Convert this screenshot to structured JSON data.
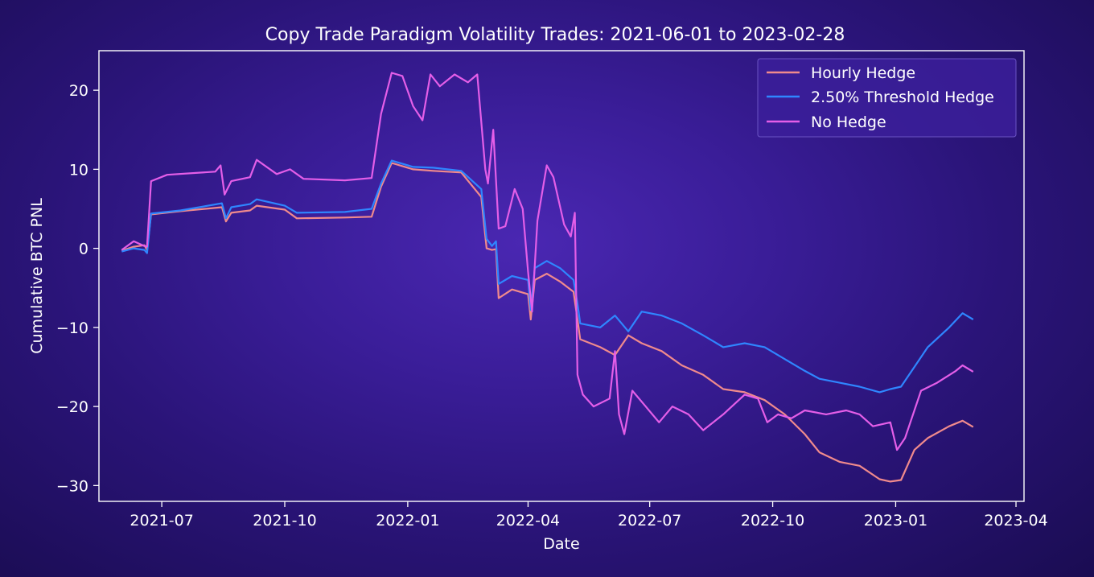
{
  "chart_data": {
    "type": "line",
    "title": "Copy Trade Paradigm Volatility Trades: 2021-06-01 to 2023-02-28",
    "xlabel": "Date",
    "ylabel": "Cumulative BTC PNL",
    "xlim": [
      "2021-05-15",
      "2023-04-07"
    ],
    "ylim": [
      -32,
      25
    ],
    "x_ticks": [
      "2021-07-01",
      "2021-10-01",
      "2022-01-01",
      "2022-04-01",
      "2022-07-01",
      "2022-10-01",
      "2023-01-01",
      "2023-04-01"
    ],
    "x_tick_labels": [
      "2021-07",
      "2021-10",
      "2022-01",
      "2022-04",
      "2022-07",
      "2022-10",
      "2023-01",
      "2023-04"
    ],
    "y_ticks": [
      20,
      10,
      0,
      -10,
      -20,
      -30
    ],
    "y_tick_labels": [
      "20",
      "10",
      "0",
      "−10",
      "−20",
      "−30"
    ],
    "grid": false,
    "legend_position": "top-right",
    "series": [
      {
        "name": "Hourly Hedge",
        "color": "#f08a8c",
        "points": [
          [
            "2021-06-01",
            -0.3
          ],
          [
            "2021-06-10",
            0.2
          ],
          [
            "2021-06-18",
            0.4
          ],
          [
            "2021-06-20",
            -0.2
          ],
          [
            "2021-06-23",
            4.3
          ],
          [
            "2021-07-15",
            4.7
          ],
          [
            "2021-08-15",
            5.2
          ],
          [
            "2021-08-18",
            3.4
          ],
          [
            "2021-08-22",
            4.5
          ],
          [
            "2021-09-05",
            4.8
          ],
          [
            "2021-09-10",
            5.4
          ],
          [
            "2021-10-01",
            4.9
          ],
          [
            "2021-10-10",
            3.8
          ],
          [
            "2021-11-15",
            3.9
          ],
          [
            "2021-12-05",
            4.0
          ],
          [
            "2021-12-12",
            7.8
          ],
          [
            "2021-12-20",
            10.8
          ],
          [
            "2022-01-05",
            10.0
          ],
          [
            "2022-01-20",
            9.8
          ],
          [
            "2022-02-10",
            9.6
          ],
          [
            "2022-02-25",
            6.5
          ],
          [
            "2022-03-01",
            0.0
          ],
          [
            "2022-03-05",
            -0.2
          ],
          [
            "2022-03-08",
            -0.1
          ],
          [
            "2022-03-10",
            -6.3
          ],
          [
            "2022-03-20",
            -5.2
          ],
          [
            "2022-04-01",
            -5.8
          ],
          [
            "2022-04-03",
            -9.0
          ],
          [
            "2022-04-06",
            -4.0
          ],
          [
            "2022-04-15",
            -3.2
          ],
          [
            "2022-04-25",
            -4.2
          ],
          [
            "2022-05-05",
            -5.5
          ],
          [
            "2022-05-08",
            -9.0
          ],
          [
            "2022-05-10",
            -11.5
          ],
          [
            "2022-05-25",
            -12.5
          ],
          [
            "2022-06-05",
            -13.5
          ],
          [
            "2022-06-15",
            -11.0
          ],
          [
            "2022-06-25",
            -12.0
          ],
          [
            "2022-07-10",
            -13.0
          ],
          [
            "2022-07-25",
            -14.8
          ],
          [
            "2022-08-10",
            -16.0
          ],
          [
            "2022-08-25",
            -17.8
          ],
          [
            "2022-09-10",
            -18.2
          ],
          [
            "2022-09-25",
            -19.2
          ],
          [
            "2022-10-10",
            -21.0
          ],
          [
            "2022-10-25",
            -23.5
          ],
          [
            "2022-11-05",
            -25.8
          ],
          [
            "2022-11-20",
            -27.0
          ],
          [
            "2022-12-05",
            -27.5
          ],
          [
            "2022-12-20",
            -29.2
          ],
          [
            "2022-12-28",
            -29.5
          ],
          [
            "2023-01-05",
            -29.3
          ],
          [
            "2023-01-15",
            -25.5
          ],
          [
            "2023-01-25",
            -24.0
          ],
          [
            "2023-02-10",
            -22.5
          ],
          [
            "2023-02-20",
            -21.8
          ],
          [
            "2023-02-28",
            -22.6
          ]
        ]
      },
      {
        "name": "2.50% Threshold Hedge",
        "color": "#2f86ff",
        "points": [
          [
            "2021-06-01",
            -0.4
          ],
          [
            "2021-06-10",
            0.0
          ],
          [
            "2021-06-18",
            -0.2
          ],
          [
            "2021-06-20",
            -0.6
          ],
          [
            "2021-06-23",
            4.4
          ],
          [
            "2021-07-15",
            4.8
          ],
          [
            "2021-08-15",
            5.7
          ],
          [
            "2021-08-18",
            3.8
          ],
          [
            "2021-08-22",
            5.2
          ],
          [
            "2021-09-05",
            5.6
          ],
          [
            "2021-09-10",
            6.2
          ],
          [
            "2021-10-01",
            5.4
          ],
          [
            "2021-10-10",
            4.5
          ],
          [
            "2021-11-15",
            4.6
          ],
          [
            "2021-12-05",
            5.0
          ],
          [
            "2021-12-12",
            8.2
          ],
          [
            "2021-12-20",
            11.1
          ],
          [
            "2022-01-05",
            10.3
          ],
          [
            "2022-01-20",
            10.2
          ],
          [
            "2022-02-10",
            9.8
          ],
          [
            "2022-02-25",
            7.5
          ],
          [
            "2022-03-01",
            1.2
          ],
          [
            "2022-03-05",
            0.3
          ],
          [
            "2022-03-08",
            0.9
          ],
          [
            "2022-03-10",
            -4.5
          ],
          [
            "2022-03-20",
            -3.5
          ],
          [
            "2022-04-01",
            -4.0
          ],
          [
            "2022-04-03",
            -7.8
          ],
          [
            "2022-04-06",
            -2.5
          ],
          [
            "2022-04-15",
            -1.6
          ],
          [
            "2022-04-25",
            -2.5
          ],
          [
            "2022-05-05",
            -4.0
          ],
          [
            "2022-05-08",
            -7.0
          ],
          [
            "2022-05-10",
            -9.5
          ],
          [
            "2022-05-25",
            -10.0
          ],
          [
            "2022-06-05",
            -8.5
          ],
          [
            "2022-06-15",
            -10.5
          ],
          [
            "2022-06-25",
            -8.0
          ],
          [
            "2022-07-10",
            -8.5
          ],
          [
            "2022-07-25",
            -9.5
          ],
          [
            "2022-08-10",
            -11.0
          ],
          [
            "2022-08-25",
            -12.5
          ],
          [
            "2022-09-10",
            -12.0
          ],
          [
            "2022-09-25",
            -12.5
          ],
          [
            "2022-10-10",
            -14.0
          ],
          [
            "2022-10-25",
            -15.5
          ],
          [
            "2022-11-05",
            -16.5
          ],
          [
            "2022-11-20",
            -17.0
          ],
          [
            "2022-12-05",
            -17.5
          ],
          [
            "2022-12-20",
            -18.2
          ],
          [
            "2022-12-28",
            -17.8
          ],
          [
            "2023-01-05",
            -17.5
          ],
          [
            "2023-01-15",
            -15.0
          ],
          [
            "2023-01-25",
            -12.5
          ],
          [
            "2023-02-10",
            -10.0
          ],
          [
            "2023-02-20",
            -8.2
          ],
          [
            "2023-02-28",
            -9.0
          ]
        ]
      },
      {
        "name": "No Hedge",
        "color": "#e45ee8",
        "points": [
          [
            "2021-06-01",
            -0.2
          ],
          [
            "2021-06-10",
            0.9
          ],
          [
            "2021-06-18",
            0.3
          ],
          [
            "2021-06-20",
            0.2
          ],
          [
            "2021-06-23",
            8.5
          ],
          [
            "2021-07-05",
            9.3
          ],
          [
            "2021-08-10",
            9.7
          ],
          [
            "2021-08-14",
            10.5
          ],
          [
            "2021-08-17",
            6.8
          ],
          [
            "2021-08-22",
            8.5
          ],
          [
            "2021-09-05",
            9.0
          ],
          [
            "2021-09-10",
            11.2
          ],
          [
            "2021-09-25",
            9.4
          ],
          [
            "2021-10-05",
            10.0
          ],
          [
            "2021-10-15",
            8.8
          ],
          [
            "2021-11-15",
            8.6
          ],
          [
            "2021-12-05",
            8.9
          ],
          [
            "2021-12-12",
            17.0
          ],
          [
            "2021-12-20",
            22.2
          ],
          [
            "2021-12-28",
            21.8
          ],
          [
            "2022-01-05",
            18.0
          ],
          [
            "2022-01-12",
            16.2
          ],
          [
            "2022-01-18",
            22.0
          ],
          [
            "2022-01-25",
            20.5
          ],
          [
            "2022-02-05",
            22.0
          ],
          [
            "2022-02-15",
            21.0
          ],
          [
            "2022-02-22",
            22.0
          ],
          [
            "2022-02-28",
            10.0
          ],
          [
            "2022-03-02",
            8.2
          ],
          [
            "2022-03-06",
            15.0
          ],
          [
            "2022-03-10",
            2.5
          ],
          [
            "2022-03-15",
            2.8
          ],
          [
            "2022-03-22",
            7.5
          ],
          [
            "2022-03-28",
            5.0
          ],
          [
            "2022-04-01",
            -3.0
          ],
          [
            "2022-04-04",
            -8.0
          ],
          [
            "2022-04-08",
            3.5
          ],
          [
            "2022-04-15",
            10.5
          ],
          [
            "2022-04-20",
            9.0
          ],
          [
            "2022-04-28",
            3.0
          ],
          [
            "2022-05-03",
            1.5
          ],
          [
            "2022-05-06",
            4.5
          ],
          [
            "2022-05-08",
            -16.0
          ],
          [
            "2022-05-12",
            -18.5
          ],
          [
            "2022-05-20",
            -20.0
          ],
          [
            "2022-06-01",
            -19.0
          ],
          [
            "2022-06-05",
            -13.0
          ],
          [
            "2022-06-08",
            -21.0
          ],
          [
            "2022-06-12",
            -23.5
          ],
          [
            "2022-06-18",
            -18.0
          ],
          [
            "2022-06-28",
            -20.0
          ],
          [
            "2022-07-08",
            -22.0
          ],
          [
            "2022-07-18",
            -20.0
          ],
          [
            "2022-07-30",
            -21.0
          ],
          [
            "2022-08-10",
            -23.0
          ],
          [
            "2022-08-25",
            -21.0
          ],
          [
            "2022-09-10",
            -18.5
          ],
          [
            "2022-09-20",
            -19.0
          ],
          [
            "2022-09-27",
            -22.0
          ],
          [
            "2022-10-05",
            -21.0
          ],
          [
            "2022-10-15",
            -21.5
          ],
          [
            "2022-10-25",
            -20.5
          ],
          [
            "2022-11-10",
            -21.0
          ],
          [
            "2022-11-25",
            -20.5
          ],
          [
            "2022-12-05",
            -21.0
          ],
          [
            "2022-12-15",
            -22.5
          ],
          [
            "2022-12-28",
            -22.0
          ],
          [
            "2023-01-02",
            -25.5
          ],
          [
            "2023-01-08",
            -24.0
          ],
          [
            "2023-01-12",
            -22.0
          ],
          [
            "2023-01-20",
            -18.0
          ],
          [
            "2023-02-01",
            -17.0
          ],
          [
            "2023-02-15",
            -15.5
          ],
          [
            "2023-02-20",
            -14.8
          ],
          [
            "2023-02-28",
            -15.6
          ]
        ]
      }
    ]
  }
}
